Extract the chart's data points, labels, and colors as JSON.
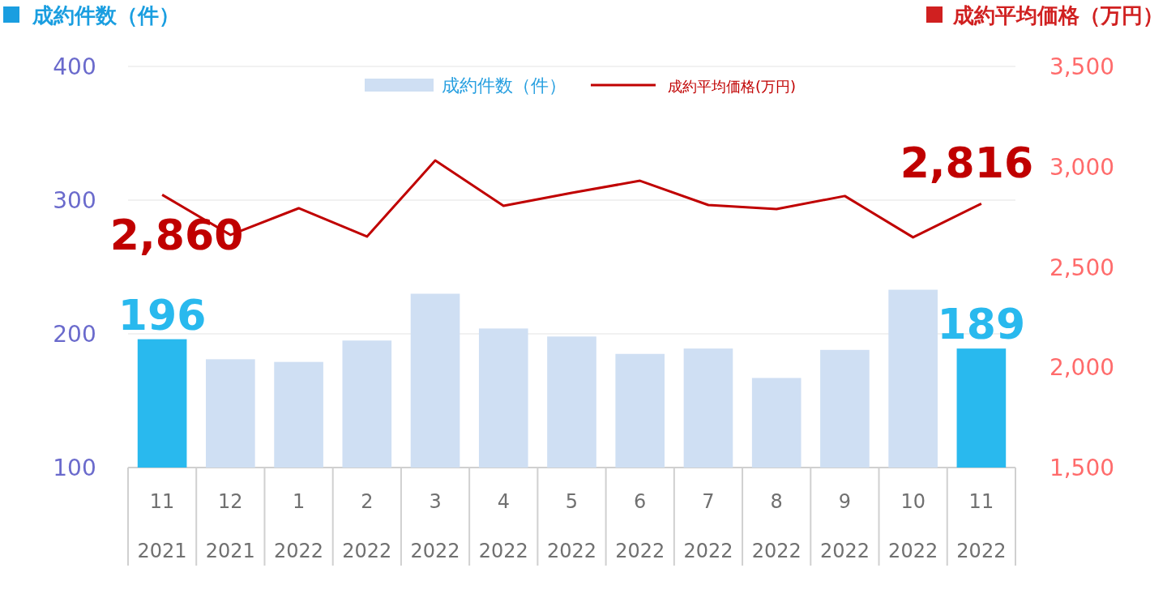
{
  "chart_data": {
    "type": "bar",
    "ylabel": "成約件数（件）",
    "y2label": "成約平均価格（万円）",
    "categories": [
      "11\n2021",
      "12\n2021",
      "1\n2022",
      "2\n2022",
      "3\n2022",
      "4\n2022",
      "5\n2022",
      "6\n2022",
      "7\n2022",
      "8\n2022",
      "9\n2022",
      "10\n2022",
      "11\n2022"
    ],
    "series": [
      {
        "name": "成約件数（件）",
        "color": "#cfdff3",
        "colors": [
          "#29b9ee",
          "#cfdff3",
          "#cfdff3",
          "#cfdff3",
          "#cfdff3",
          "#cfdff3",
          "#cfdff3",
          "#cfdff3",
          "#cfdff3",
          "#cfdff3",
          "#cfdff3",
          "#cfdff3",
          "#29b9ee"
        ],
        "values": [
          196,
          181,
          179,
          195,
          230,
          204,
          198,
          185,
          189,
          167,
          188,
          233,
          189
        ],
        "value_labels": [
          "196",
          null,
          null,
          null,
          null,
          null,
          null,
          null,
          null,
          null,
          null,
          null,
          "189"
        ]
      },
      {
        "name": "成約平均価格(万円)",
        "type": "line",
        "axis": "y2",
        "color": "#c00000",
        "values": [
          2860,
          2660,
          2793,
          2652,
          3031,
          2805,
          2870,
          2930,
          2809,
          2789,
          2854,
          2648,
          2816
        ],
        "value_labels": [
          "2,860",
          null,
          null,
          null,
          null,
          null,
          null,
          null,
          null,
          null,
          null,
          null,
          "2,816"
        ]
      }
    ],
    "ylim": [
      100,
      400
    ],
    "yticks": [
      100,
      200,
      300,
      400
    ],
    "y2lim": [
      1500,
      3500
    ],
    "y2ticks": [
      {
        "value": 1500,
        "label": "1,500"
      },
      {
        "value": 2000,
        "label": "2,000"
      },
      {
        "value": 2500,
        "label": "2,500"
      },
      {
        "value": 3000,
        "label": "3,000"
      },
      {
        "value": 3500,
        "label": "3,500"
      }
    ],
    "grid": "y",
    "legend": "top"
  }
}
